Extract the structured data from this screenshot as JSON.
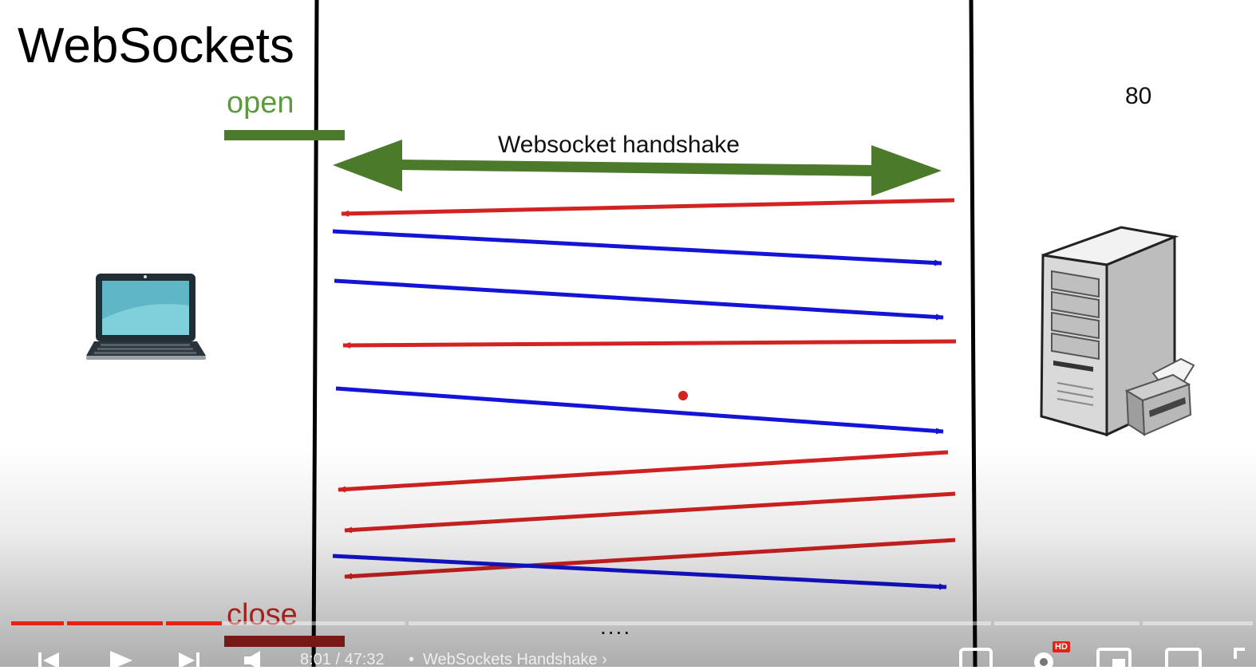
{
  "slide": {
    "title": "WebSockets",
    "open_label": "open",
    "close_label": "close",
    "handshake_label": "Websocket handshake",
    "port_label": "80",
    "dots": "....",
    "colors": {
      "open": "#4a7a2a",
      "close": "#a3221d",
      "handshake": "#4a7a2a",
      "server_to_client": "#d32222",
      "client_to_server": "#1414d6"
    }
  },
  "player": {
    "time": "8:01 / 47:32",
    "chapter_separator": "•",
    "chapter_title": "WebSockets Handshake",
    "chapter_arrow": "›",
    "hd_badge": "HD",
    "progress": 0.168,
    "icons": {
      "prev": "skip-previous-icon",
      "play": "play-icon",
      "next": "skip-next-icon",
      "volume": "volume-icon",
      "captions": "captions-icon",
      "settings": "gear-icon",
      "miniplayer": "miniplayer-icon",
      "theater": "theater-icon",
      "fullscreen": "fullscreen-icon"
    }
  }
}
